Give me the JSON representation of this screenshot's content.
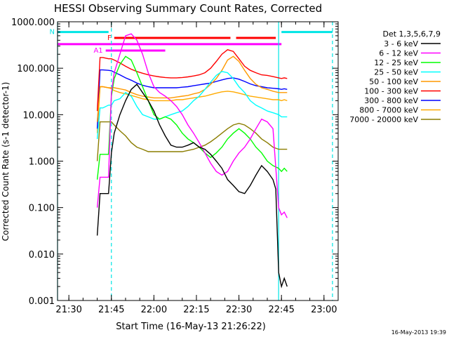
{
  "chart_data": {
    "type": "line",
    "title": "HESSI Observing Summary Count Rates, Corrected",
    "xlabel": "Start Time (16-May-13 21:26:22)",
    "ylabel": "Corrected Count Rate (s-1 detector-1)",
    "yscale": "log",
    "xlim": [
      "21:26",
      "23:05"
    ],
    "ylim": [
      0.001,
      1000
    ],
    "x_ticks": [
      "21:30",
      "21:45",
      "22:00",
      "22:15",
      "22:30",
      "22:45",
      "23:00"
    ],
    "y_ticks": [
      "0.001",
      "0.010",
      "0.100",
      "1.000",
      "10.000",
      "100.000",
      "1000.000"
    ],
    "grid": false,
    "legend_title": "Det 1,3,5,6,7,9",
    "legend_position": "right",
    "footer": "16-May-2013 19:39",
    "vlines": [
      {
        "time": "21:26",
        "style": "solid",
        "color": "#00e5e5"
      },
      {
        "time": "21:45",
        "style": "dashed",
        "color": "#00e5e5"
      },
      {
        "time": "22:44",
        "style": "solid",
        "color": "#00e5e5"
      },
      {
        "time": "23:03",
        "style": "dashed",
        "color": "#00e5e5"
      }
    ],
    "flag_bars": [
      {
        "label": "N",
        "color": "#00e5e5",
        "y": 600,
        "segments": [
          [
            "21:26",
            "21:44"
          ],
          [
            "22:45",
            "23:03"
          ]
        ]
      },
      {
        "label": "F",
        "color": "#ff0000",
        "y": 450,
        "segments": [
          [
            "21:46",
            "22:27"
          ],
          [
            "22:29",
            "22:43"
          ]
        ]
      },
      {
        "label": "",
        "color": "#ff00ff",
        "y": 330,
        "segments": [
          [
            "21:26",
            "22:45"
          ]
        ]
      },
      {
        "label": "A1",
        "color": "#ff00ff",
        "y": 240,
        "segments": [
          [
            "21:43",
            "22:04"
          ]
        ]
      }
    ],
    "series": [
      {
        "name": "3 - 6 keV",
        "color": "#000000",
        "x": [
          "21:40",
          "21:41",
          "21:42",
          "21:44",
          "21:45",
          "21:46",
          "21:48",
          "21:50",
          "21:52",
          "21:54",
          "21:56",
          "21:58",
          "22:00",
          "22:02",
          "22:04",
          "22:06",
          "22:08",
          "22:10",
          "22:12",
          "22:14",
          "22:16",
          "22:18",
          "22:20",
          "22:22",
          "22:24",
          "22:26",
          "22:28",
          "22:30",
          "22:32",
          "22:34",
          "22:36",
          "22:38",
          "22:40",
          "22:42",
          "22:43",
          "22:44",
          "22:45",
          "22:46",
          "22:47"
        ],
        "y": [
          0.025,
          0.2,
          0.2,
          0.2,
          1.5,
          4,
          10,
          20,
          35,
          45,
          30,
          20,
          12,
          6,
          3.5,
          2.2,
          2,
          2,
          2.2,
          2.5,
          2,
          1.8,
          1.4,
          1,
          0.7,
          0.4,
          0.3,
          0.22,
          0.2,
          0.3,
          0.5,
          0.8,
          0.6,
          0.4,
          0.25,
          0.004,
          0.002,
          0.003,
          0.002
        ]
      },
      {
        "name": "6 - 12 keV",
        "color": "#ff00ff",
        "x": [
          "21:40",
          "21:41",
          "21:42",
          "21:44",
          "21:45",
          "21:46",
          "21:48",
          "21:50",
          "21:52",
          "21:54",
          "21:56",
          "21:58",
          "22:00",
          "22:02",
          "22:04",
          "22:06",
          "22:08",
          "22:10",
          "22:12",
          "22:14",
          "22:16",
          "22:18",
          "22:20",
          "22:22",
          "22:24",
          "22:26",
          "22:28",
          "22:30",
          "22:32",
          "22:34",
          "22:36",
          "22:38",
          "22:40",
          "22:42",
          "22:44",
          "22:45",
          "22:46",
          "22:47"
        ],
        "y": [
          0.1,
          0.45,
          0.45,
          0.45,
          30,
          80,
          200,
          500,
          550,
          400,
          200,
          80,
          40,
          30,
          25,
          20,
          15,
          10,
          6,
          4,
          2.5,
          1.5,
          0.9,
          0.6,
          0.5,
          0.6,
          1,
          1.5,
          2,
          3,
          5,
          8,
          7,
          5,
          0.1,
          0.07,
          0.08,
          0.06
        ]
      },
      {
        "name": "12 - 25 keV",
        "color": "#00ff00",
        "x": [
          "21:40",
          "21:41",
          "21:42",
          "21:44",
          "21:45",
          "21:46",
          "21:48",
          "21:50",
          "21:52",
          "21:54",
          "21:56",
          "21:58",
          "22:00",
          "22:02",
          "22:04",
          "22:06",
          "22:08",
          "22:10",
          "22:12",
          "22:14",
          "22:16",
          "22:18",
          "22:20",
          "22:22",
          "22:24",
          "22:26",
          "22:28",
          "22:30",
          "22:32",
          "22:34",
          "22:36",
          "22:38",
          "22:40",
          "22:42",
          "22:44",
          "22:45",
          "22:46",
          "22:47"
        ],
        "y": [
          0.4,
          1.4,
          1.4,
          1.4,
          25,
          60,
          120,
          180,
          150,
          80,
          40,
          20,
          10,
          8,
          9,
          8,
          6,
          4,
          3,
          2.5,
          2,
          1.5,
          1.2,
          1.5,
          2,
          3,
          4,
          5,
          4,
          3,
          2,
          1.5,
          1,
          0.8,
          0.7,
          0.6,
          0.7,
          0.6
        ]
      },
      {
        "name": "25 - 50 keV",
        "color": "#00ffff",
        "x": [
          "21:40",
          "21:41",
          "21:42",
          "21:44",
          "21:45",
          "21:46",
          "21:48",
          "21:50",
          "21:52",
          "21:54",
          "21:56",
          "21:58",
          "22:00",
          "22:02",
          "22:04",
          "22:06",
          "22:08",
          "22:10",
          "22:12",
          "22:14",
          "22:16",
          "22:18",
          "22:20",
          "22:22",
          "22:24",
          "22:26",
          "22:28",
          "22:30",
          "22:32",
          "22:34",
          "22:36",
          "22:38",
          "22:40",
          "22:42",
          "22:44",
          "22:45",
          "22:46",
          "22:47"
        ],
        "y": [
          3,
          14,
          14,
          16,
          16,
          20,
          22,
          30,
          25,
          15,
          10,
          9,
          8,
          8,
          9,
          10,
          11,
          12,
          15,
          20,
          25,
          35,
          50,
          70,
          85,
          80,
          60,
          40,
          30,
          20,
          16,
          14,
          12,
          11,
          10,
          9,
          9,
          9
        ]
      },
      {
        "name": "50 - 100 keV",
        "color": "#ff9900",
        "x": [
          "21:40",
          "21:41",
          "21:42",
          "21:44",
          "21:45",
          "21:46",
          "21:48",
          "21:50",
          "21:52",
          "21:54",
          "21:56",
          "21:58",
          "22:00",
          "22:02",
          "22:04",
          "22:06",
          "22:08",
          "22:10",
          "22:12",
          "22:14",
          "22:16",
          "22:18",
          "22:20",
          "22:22",
          "22:24",
          "22:26",
          "22:28",
          "22:30",
          "22:32",
          "22:34",
          "22:36",
          "22:38",
          "22:40",
          "22:42",
          "22:44",
          "22:45",
          "22:46",
          "22:47"
        ],
        "y": [
          7,
          40,
          40,
          38,
          38,
          38,
          36,
          34,
          30,
          27,
          25,
          24,
          23,
          23,
          23,
          23,
          24,
          25,
          26,
          28,
          30,
          35,
          45,
          60,
          90,
          150,
          180,
          140,
          90,
          60,
          45,
          38,
          35,
          32,
          30,
          30,
          30,
          30
        ]
      },
      {
        "name": "100 - 300 keV",
        "color": "#ff0000",
        "x": [
          "21:40",
          "21:41",
          "21:42",
          "21:44",
          "21:45",
          "21:46",
          "21:48",
          "21:50",
          "21:52",
          "21:54",
          "21:56",
          "21:58",
          "22:00",
          "22:02",
          "22:04",
          "22:06",
          "22:08",
          "22:10",
          "22:12",
          "22:14",
          "22:16",
          "22:18",
          "22:20",
          "22:22",
          "22:24",
          "22:26",
          "22:28",
          "22:30",
          "22:32",
          "22:34",
          "22:36",
          "22:38",
          "22:40",
          "22:42",
          "22:44",
          "22:45",
          "22:46",
          "22:47"
        ],
        "y": [
          12,
          170,
          170,
          160,
          160,
          150,
          130,
          110,
          95,
          85,
          78,
          72,
          68,
          65,
          63,
          62,
          62,
          63,
          65,
          68,
          72,
          80,
          100,
          140,
          200,
          250,
          230,
          160,
          110,
          90,
          80,
          72,
          70,
          66,
          62,
          60,
          62,
          60
        ]
      },
      {
        "name": "300 - 800 keV",
        "color": "#0000ff",
        "x": [
          "21:40",
          "21:41",
          "21:42",
          "21:44",
          "21:45",
          "21:46",
          "21:48",
          "21:50",
          "21:52",
          "21:54",
          "21:56",
          "21:58",
          "22:00",
          "22:02",
          "22:04",
          "22:06",
          "22:08",
          "22:10",
          "22:12",
          "22:14",
          "22:16",
          "22:18",
          "22:20",
          "22:22",
          "22:24",
          "22:26",
          "22:28",
          "22:30",
          "22:32",
          "22:34",
          "22:36",
          "22:38",
          "22:40",
          "22:42",
          "22:44",
          "22:45",
          "22:46",
          "22:47"
        ],
        "y": [
          5,
          92,
          92,
          90,
          88,
          82,
          72,
          62,
          55,
          48,
          43,
          40,
          38,
          38,
          38,
          38,
          38,
          39,
          40,
          42,
          44,
          46,
          48,
          52,
          56,
          60,
          62,
          58,
          52,
          46,
          42,
          40,
          38,
          37,
          36,
          35,
          36,
          35
        ]
      },
      {
        "name": "800 - 7000 keV",
        "color": "#ffaa00",
        "x": [
          "21:40",
          "21:41",
          "21:42",
          "21:44",
          "21:45",
          "21:46",
          "21:48",
          "21:50",
          "21:52",
          "21:54",
          "21:56",
          "21:58",
          "22:00",
          "22:02",
          "22:04",
          "22:06",
          "22:08",
          "22:10",
          "22:12",
          "22:14",
          "22:16",
          "22:18",
          "22:20",
          "22:22",
          "22:24",
          "22:26",
          "22:28",
          "22:30",
          "22:32",
          "22:34",
          "22:36",
          "22:38",
          "22:40",
          "22:42",
          "22:44",
          "22:45",
          "22:46",
          "22:47"
        ],
        "y": [
          4,
          40,
          40,
          38,
          36,
          33,
          30,
          28,
          26,
          24,
          22,
          21,
          20,
          20,
          20,
          20,
          21,
          21,
          22,
          23,
          24,
          25,
          27,
          29,
          31,
          32,
          31,
          29,
          27,
          25,
          24,
          23,
          22,
          21,
          21,
          20,
          21,
          20
        ]
      },
      {
        "name": "7000 - 20000 keV",
        "color": "#8b7d00",
        "x": [
          "21:40",
          "21:41",
          "21:42",
          "21:44",
          "21:45",
          "21:46",
          "21:48",
          "21:50",
          "21:52",
          "21:54",
          "21:56",
          "21:58",
          "22:00",
          "22:02",
          "22:04",
          "22:06",
          "22:08",
          "22:10",
          "22:12",
          "22:14",
          "22:16",
          "22:18",
          "22:20",
          "22:22",
          "22:24",
          "22:26",
          "22:28",
          "22:30",
          "22:32",
          "22:34",
          "22:36",
          "22:38",
          "22:40",
          "22:42",
          "22:44",
          "22:45",
          "22:46",
          "22:47"
        ],
        "y": [
          1,
          7,
          7,
          7,
          7,
          6,
          4.5,
          3.5,
          2.5,
          2,
          1.8,
          1.6,
          1.6,
          1.6,
          1.6,
          1.6,
          1.6,
          1.6,
          1.7,
          1.8,
          2,
          2.2,
          2.6,
          3.2,
          4,
          5,
          6,
          6.5,
          6,
          5,
          4,
          3,
          2.5,
          2,
          1.8,
          1.8,
          1.8,
          1.8
        ]
      }
    ]
  }
}
